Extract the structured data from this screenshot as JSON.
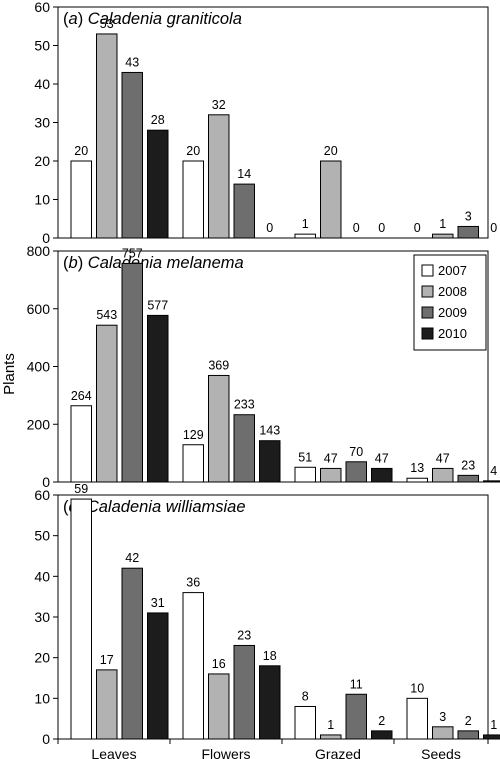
{
  "colors": {
    "2007": "#ffffff",
    "2008": "#b2b2b2",
    "2009": "#6e6e6e",
    "2010": "#1c1c1c",
    "stroke": "#000000"
  },
  "chart_data": {
    "type": "bar",
    "categories": [
      "Leaves",
      "Flowers",
      "Grazed",
      "Seeds"
    ],
    "ylabel": "Plants",
    "legend": {
      "placement": "top-right of panel b",
      "entries": [
        "2007",
        "2008",
        "2009",
        "2010"
      ]
    },
    "grid": false,
    "panels": [
      {
        "letter": "(a)",
        "species": "Caladenia graniticola",
        "ylim": [
          0,
          60
        ],
        "yticks": [
          0,
          10,
          20,
          30,
          40,
          50,
          60
        ],
        "series": [
          {
            "name": "2007",
            "values": [
              20,
              20,
              1,
              0
            ]
          },
          {
            "name": "2008",
            "values": [
              53,
              32,
              20,
              1
            ]
          },
          {
            "name": "2009",
            "values": [
              43,
              14,
              0,
              3
            ]
          },
          {
            "name": "2010",
            "values": [
              28,
              0,
              0,
              0
            ]
          }
        ]
      },
      {
        "letter": "(b)",
        "species": "Caladenia melanema",
        "ylim": [
          0,
          800
        ],
        "yticks": [
          0,
          200,
          400,
          600,
          800
        ],
        "series": [
          {
            "name": "2007",
            "values": [
              264,
              129,
              51,
              13
            ]
          },
          {
            "name": "2008",
            "values": [
              543,
              369,
              47,
              47
            ]
          },
          {
            "name": "2009",
            "values": [
              757,
              233,
              70,
              23
            ]
          },
          {
            "name": "2010",
            "values": [
              577,
              143,
              47,
              4
            ]
          }
        ]
      },
      {
        "letter": "(c)",
        "species": "Caladenia williamsiae",
        "ylim": [
          0,
          60
        ],
        "yticks": [
          0,
          10,
          20,
          30,
          40,
          50,
          60
        ],
        "series": [
          {
            "name": "2007",
            "values": [
              59,
              36,
              8,
              10
            ]
          },
          {
            "name": "2008",
            "values": [
              17,
              16,
              1,
              3
            ]
          },
          {
            "name": "2009",
            "values": [
              42,
              23,
              11,
              2
            ]
          },
          {
            "name": "2010",
            "values": [
              31,
              18,
              2,
              1
            ]
          }
        ]
      }
    ]
  }
}
